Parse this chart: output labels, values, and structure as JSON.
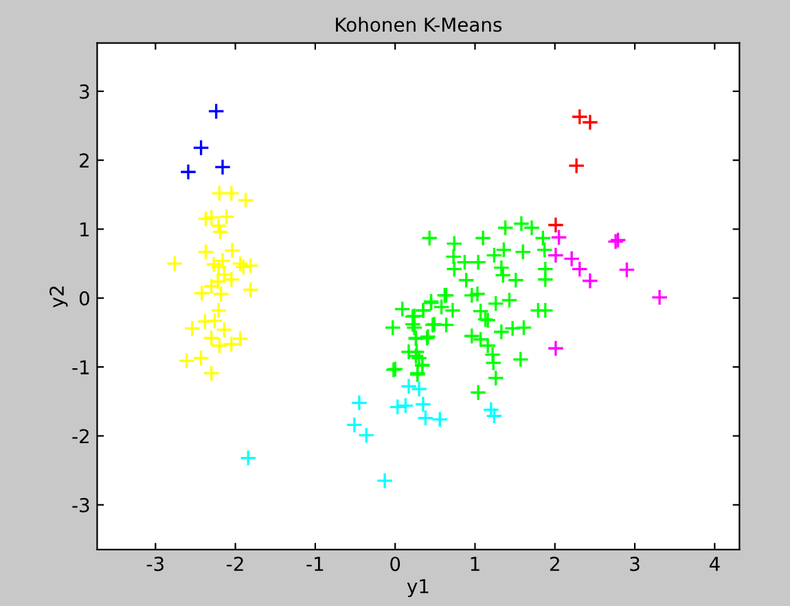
{
  "chart_data": {
    "type": "scatter",
    "title": "Kohonen K-Means",
    "xlabel": "y1",
    "ylabel": "y2",
    "marker": "cross",
    "grid": false,
    "legend": false,
    "xlim": [
      -3.73,
      4.31
    ],
    "ylim": [
      -3.65,
      3.7
    ],
    "xticks": [
      -3,
      -2,
      -1,
      0,
      1,
      2,
      3,
      4
    ],
    "yticks": [
      -3,
      -2,
      -1,
      0,
      1,
      2,
      3
    ],
    "series": [
      {
        "color": "#0000ff",
        "x": [
          -2.24,
          -2.43,
          -2.59,
          -2.16
        ],
        "values": [
          2.71,
          2.18,
          1.83,
          1.9
        ]
      },
      {
        "color": "#ffff00",
        "x": [
          -2.2,
          -2.05,
          -1.87,
          -2.37,
          -2.3,
          -2.11,
          -2.21,
          -2.19,
          -2.37,
          -2.04,
          -2.76,
          -2.27,
          -2.16,
          -2.21,
          -1.94,
          -1.9,
          -1.81,
          -2.14,
          -2.05,
          -2.22,
          -2.3,
          -2.18,
          -2.42,
          -1.81,
          -2.21,
          -2.54,
          -2.38,
          -2.26,
          -2.3,
          -2.14,
          -2.2,
          -2.05,
          -1.94,
          -2.61,
          -2.43,
          -2.3
        ],
        "values": [
          1.52,
          1.52,
          1.42,
          1.15,
          1.17,
          1.18,
          1.05,
          0.96,
          0.67,
          0.69,
          0.5,
          0.49,
          0.54,
          0.45,
          0.5,
          0.45,
          0.47,
          0.34,
          0.27,
          0.24,
          0.17,
          0.06,
          0.07,
          0.12,
          -0.18,
          -0.44,
          -0.34,
          -0.33,
          -0.58,
          -0.46,
          -0.69,
          -0.67,
          -0.59,
          -0.91,
          -0.87,
          -1.09
        ]
      },
      {
        "color": "#00ffff",
        "x": [
          -1.84,
          -0.45,
          -0.51,
          -0.36,
          -0.13,
          0.17,
          0.3,
          0.03,
          0.13,
          0.35,
          0.38,
          0.56,
          1.2,
          1.24
        ],
        "values": [
          -2.32,
          -1.52,
          -1.84,
          -1.99,
          -2.65,
          -1.28,
          -1.32,
          -1.58,
          -1.56,
          -1.54,
          -1.74,
          -1.76,
          -1.62,
          -1.71
        ]
      },
      {
        "color": "#ff0000",
        "x": [
          2.31,
          2.44,
          2.27,
          2.01
        ],
        "values": [
          2.63,
          2.55,
          1.92,
          1.06
        ]
      },
      {
        "color": "#ff00ff",
        "x": [
          2.05,
          2.76,
          2.79,
          2.01,
          2.21,
          2.31,
          2.44,
          2.9,
          3.31,
          2.01
        ],
        "values": [
          0.88,
          0.82,
          0.84,
          0.62,
          0.57,
          0.42,
          0.25,
          0.41,
          0.01,
          -0.73
        ]
      },
      {
        "color": "#00ff00",
        "x": [
          1.58,
          1.71,
          1.38,
          1.1,
          0.43,
          0.74,
          1.85,
          1.87,
          1.88,
          1.88,
          1.36,
          1.6,
          1.24,
          0.73,
          0.87,
          1.04,
          0.74,
          1.33,
          1.35,
          1.51,
          0.89,
          0.96,
          1.03,
          0.64,
          0.45,
          0.72,
          0.58,
          1.26,
          1.43,
          1.79,
          1.88,
          0.35,
          1.07,
          1.13,
          1.16,
          0.47,
          0.64,
          1.47,
          1.61,
          1.33,
          0.96,
          1.07,
          1.16,
          0.26,
          0.41,
          1.22,
          1.57,
          0.34,
          0.28,
          1.26,
          0.26,
          0.24,
          0.24,
          0.09,
          0.22,
          0.35,
          0.45,
          -0.03,
          0.22,
          0.26,
          0.4,
          0.49,
          0.17,
          0.27,
          0.3,
          0.34,
          0.28,
          -0.02,
          0.0,
          1.23,
          1.04,
          0.62
        ],
        "values": [
          1.08,
          1.02,
          1.02,
          0.87,
          0.87,
          0.79,
          0.87,
          0.7,
          0.42,
          0.27,
          0.7,
          0.67,
          0.62,
          0.6,
          0.52,
          0.52,
          0.42,
          0.44,
          0.33,
          0.26,
          0.26,
          0.04,
          0.06,
          0.04,
          -0.05,
          -0.18,
          -0.13,
          -0.08,
          -0.03,
          -0.18,
          -0.18,
          -0.18,
          -0.19,
          -0.31,
          -0.32,
          -0.39,
          -0.39,
          -0.44,
          -0.43,
          -0.49,
          -0.55,
          -0.6,
          -0.69,
          -0.59,
          -0.56,
          -0.82,
          -0.89,
          -0.97,
          -1.09,
          -1.16,
          -0.84,
          -0.26,
          -0.43,
          -0.16,
          -0.27,
          -0.18,
          -0.07,
          -0.43,
          -0.38,
          -0.58,
          -0.58,
          -0.38,
          -0.78,
          -0.78,
          -0.87,
          -0.98,
          -1.11,
          -1.04,
          -1.03,
          -0.94,
          -1.37,
          0.04
        ]
      }
    ]
  }
}
